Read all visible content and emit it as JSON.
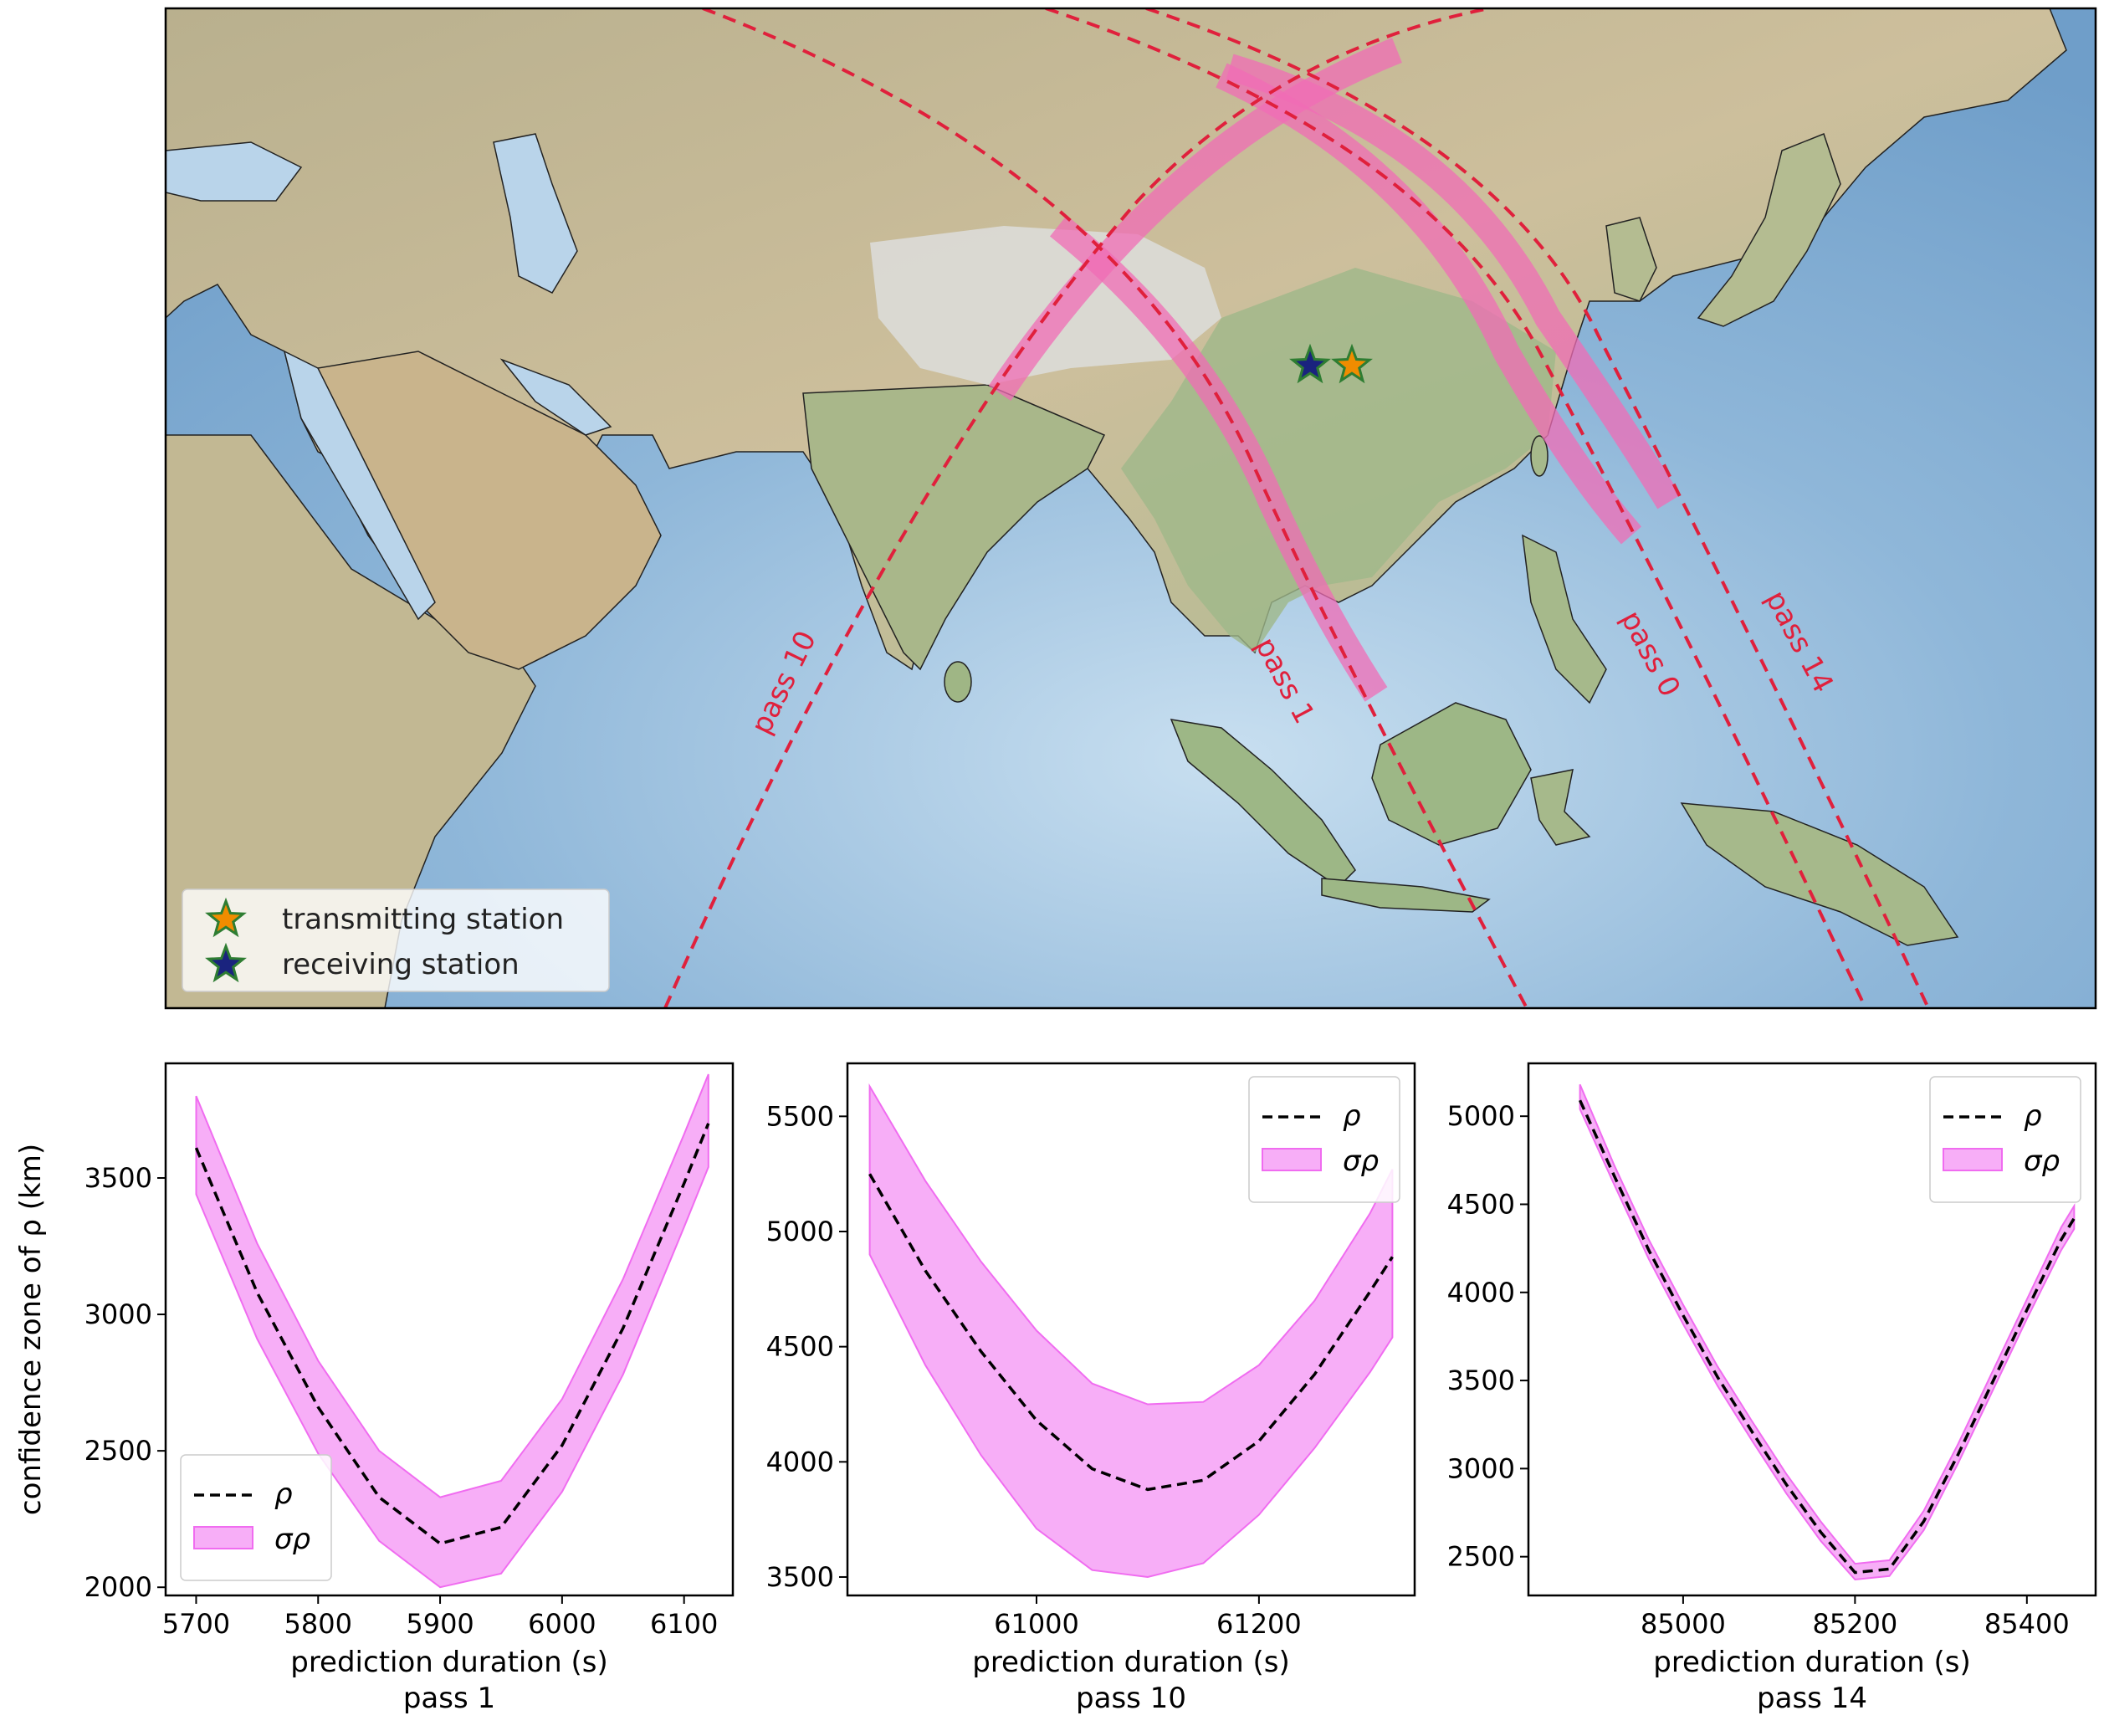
{
  "map": {
    "legend": {
      "transmitting": "transmitting station",
      "receiving": "receiving station"
    },
    "pass_labels": [
      "pass 10",
      "pass 1",
      "pass 0",
      "pass 14"
    ],
    "colors": {
      "track": "#e0203c",
      "confidence_band": "#f06cb6",
      "transmitting_star": "#f08c00",
      "receiving_star": "#1a237e",
      "star_edge": "#2e7d32",
      "ocean": "#8fb8dc",
      "land": "#c9bd9d"
    }
  },
  "chart_data": [
    {
      "type": "line",
      "panel": "pass 1",
      "title": "pass 1",
      "xlabel": "prediction duration (s)",
      "ylabel": "confidence zone of ρ (km)",
      "xlim": [
        5675,
        6140
      ],
      "ylim": [
        1970,
        3920
      ],
      "xticks": [
        5700,
        5800,
        5900,
        6000,
        6100
      ],
      "yticks": [
        2000,
        2500,
        3000,
        3500
      ],
      "series": [
        {
          "name": "ρ",
          "style": "dashed",
          "color": "#000000",
          "x": [
            5700,
            5750,
            5800,
            5850,
            5900,
            5950,
            6000,
            6050,
            6100,
            6120
          ],
          "y": [
            3610,
            3080,
            2660,
            2330,
            2160,
            2220,
            2520,
            2950,
            3480,
            3700
          ]
        },
        {
          "name": "σρ",
          "style": "band",
          "color": "#f06cf0",
          "x": [
            5700,
            5750,
            5800,
            5850,
            5900,
            5950,
            6000,
            6050,
            6100,
            6120
          ],
          "lower": [
            3440,
            2910,
            2490,
            2170,
            2000,
            2050,
            2350,
            2780,
            3320,
            3540
          ],
          "upper": [
            3800,
            3260,
            2830,
            2500,
            2330,
            2390,
            2690,
            3130,
            3660,
            3880
          ]
        }
      ],
      "legend": {
        "placement": "lower-left",
        "entries": [
          "ρ",
          "σρ"
        ]
      }
    },
    {
      "type": "line",
      "panel": "pass 10",
      "title": "pass 10",
      "xlabel": "prediction duration (s)",
      "ylabel": "",
      "xlim": [
        60830,
        61340
      ],
      "ylim": [
        3420,
        5730
      ],
      "xticks": [
        61000,
        61200
      ],
      "yticks": [
        3500,
        4000,
        4500,
        5000,
        5500
      ],
      "series": [
        {
          "name": "ρ",
          "style": "dashed",
          "color": "#000000",
          "x": [
            60850,
            60900,
            60950,
            61000,
            61050,
            61100,
            61150,
            61200,
            61250,
            61300,
            61320
          ],
          "y": [
            5250,
            4830,
            4480,
            4180,
            3970,
            3880,
            3920,
            4090,
            4380,
            4740,
            4890
          ]
        },
        {
          "name": "σρ",
          "style": "band",
          "color": "#f06cf0",
          "x": [
            60850,
            60900,
            60950,
            61000,
            61050,
            61100,
            61150,
            61200,
            61250,
            61300,
            61320
          ],
          "lower": [
            4900,
            4420,
            4030,
            3710,
            3530,
            3500,
            3560,
            3770,
            4060,
            4390,
            4540
          ],
          "upper": [
            5630,
            5220,
            4870,
            4570,
            4340,
            4250,
            4260,
            4420,
            4700,
            5080,
            5270
          ]
        }
      ],
      "legend": {
        "placement": "upper-right",
        "entries": [
          "ρ",
          "σρ"
        ]
      }
    },
    {
      "type": "line",
      "panel": "pass 14",
      "title": "pass 14",
      "xlabel": "prediction duration (s)",
      "ylabel": "",
      "xlim": [
        84820,
        85480
      ],
      "ylim": [
        2280,
        5300
      ],
      "xticks": [
        85000,
        85200,
        85400
      ],
      "yticks": [
        2500,
        3000,
        3500,
        4000,
        4500,
        5000
      ],
      "series": [
        {
          "name": "ρ",
          "style": "dashed",
          "color": "#000000",
          "x": [
            84880,
            84920,
            84960,
            85000,
            85040,
            85080,
            85120,
            85160,
            85200,
            85240,
            85280,
            85320,
            85360,
            85400,
            85440,
            85455
          ],
          "y": [
            5090,
            4660,
            4240,
            3870,
            3520,
            3210,
            2910,
            2640,
            2410,
            2430,
            2700,
            3080,
            3490,
            3900,
            4300,
            4420
          ]
        },
        {
          "name": "σρ",
          "style": "band",
          "color": "#f06cf0",
          "x": [
            84880,
            84920,
            84960,
            85000,
            85040,
            85080,
            85120,
            85160,
            85200,
            85240,
            85280,
            85320,
            85360,
            85400,
            85440,
            85455
          ],
          "lower": [
            5040,
            4610,
            4190,
            3820,
            3470,
            3160,
            2860,
            2590,
            2370,
            2390,
            2650,
            3030,
            3440,
            3850,
            4240,
            4360
          ],
          "upper": [
            5180,
            4720,
            4300,
            3930,
            3580,
            3270,
            2970,
            2700,
            2460,
            2480,
            2760,
            3140,
            3550,
            3960,
            4370,
            4490
          ]
        }
      ],
      "legend": {
        "placement": "upper-right",
        "entries": [
          "ρ",
          "σρ"
        ]
      }
    }
  ]
}
